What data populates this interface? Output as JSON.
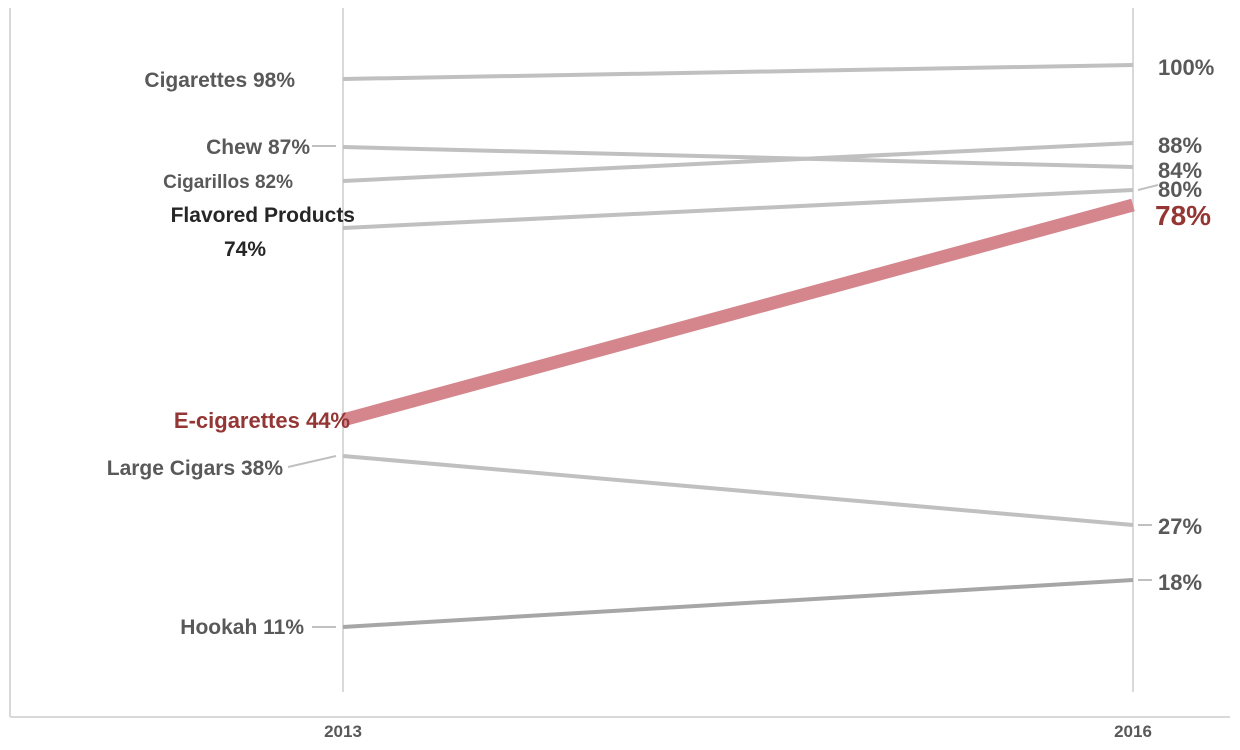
{
  "chart_data": {
    "type": "line",
    "x": [
      "2013",
      "2016"
    ],
    "series": [
      {
        "name": "Cigarettes",
        "values": [
          98,
          100
        ],
        "left_label": "Cigarettes 98%",
        "right_label": "100%"
      },
      {
        "name": "Chew",
        "values": [
          87,
          84
        ],
        "left_label": "Chew 87%",
        "right_label": "84%"
      },
      {
        "name": "Cigarillos",
        "values": [
          82,
          88
        ],
        "left_label": "Cigarillos  82%",
        "right_label": "88%"
      },
      {
        "name": "Flavored Products",
        "values": [
          74,
          80
        ],
        "left_label": [
          "Flavored Products",
          "74%"
        ],
        "right_label": "80%"
      },
      {
        "name": "E-cigarettes",
        "values": [
          44,
          78
        ],
        "left_label": "E-cigarettes 44%",
        "right_label": "78%",
        "highlight": true
      },
      {
        "name": "Large Cigars",
        "values": [
          38,
          27
        ],
        "left_label": "Large Cigars 38%",
        "right_label": "27%"
      },
      {
        "name": "Hookah",
        "values": [
          11,
          18
        ],
        "left_label": "Hookah 11%",
        "right_label": "18%"
      }
    ],
    "ylim": [
      0,
      100
    ],
    "grid": false,
    "legend": "none",
    "colors": {
      "line": "#c0c0c0",
      "hookah_line": "#a6a6a6",
      "highlight_line": "#d4868c",
      "highlight_text": "#943634",
      "text": "#595959",
      "axis": "#d9d9d9"
    }
  }
}
